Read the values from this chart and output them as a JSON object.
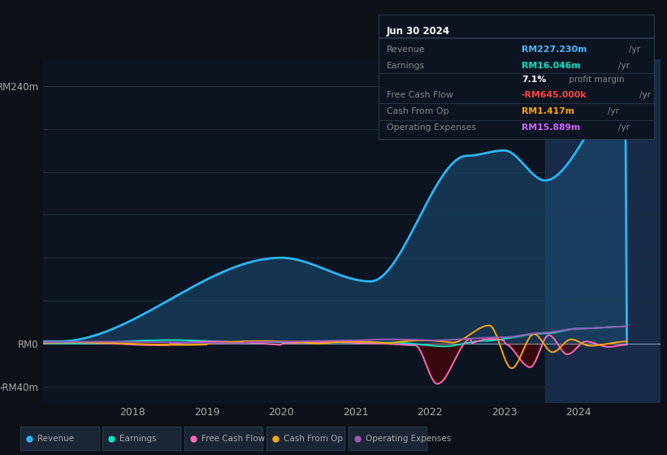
{
  "background_color": "#0d1117",
  "plot_bg_color": "#0d1421",
  "title_box": {
    "date": "Jun 30 2024",
    "rows": [
      {
        "label": "Revenue",
        "value": "RM227.230m",
        "unit": "/yr",
        "value_color": "#4db8ff"
      },
      {
        "label": "Earnings",
        "value": "RM16.046m",
        "unit": "/yr",
        "value_color": "#00e5c8"
      },
      {
        "label": "",
        "value": "7.1%",
        "unit": " profit margin",
        "value_color": "#ffffff"
      },
      {
        "label": "Free Cash Flow",
        "value": "-RM645.000k",
        "unit": "/yr",
        "value_color": "#ff4444"
      },
      {
        "label": "Cash From Op",
        "value": "RM1.417m",
        "unit": "/yr",
        "value_color": "#ffa500"
      },
      {
        "label": "Operating Expenses",
        "value": "RM15.889m",
        "unit": "/yr",
        "value_color": "#cc66ff"
      }
    ]
  },
  "x_ticks": [
    2018,
    2019,
    2020,
    2021,
    2022,
    2023,
    2024
  ],
  "y_ticks_labels": [
    "RM240m",
    "RM0",
    "-RM40m"
  ],
  "y_ticks_vals": [
    240,
    0,
    -40
  ],
  "ylim": [
    -55,
    265
  ],
  "xlim": [
    2016.8,
    2025.1
  ],
  "shaded_region_start": 2023.55,
  "revenue_color": "#29b6f6",
  "earnings_color": "#00e5c8",
  "fcf_color": "#ff69b4",
  "cashfromop_color": "#ffa500",
  "opex_color": "#9b59b6",
  "legend_items": [
    {
      "label": "Revenue",
      "color": "#29b6f6"
    },
    {
      "label": "Earnings",
      "color": "#00e5c8"
    },
    {
      "label": "Free Cash Flow",
      "color": "#ff69b4"
    },
    {
      "label": "Cash From Op",
      "color": "#ffa500"
    },
    {
      "label": "Operating Expenses",
      "color": "#9b59b6"
    }
  ]
}
